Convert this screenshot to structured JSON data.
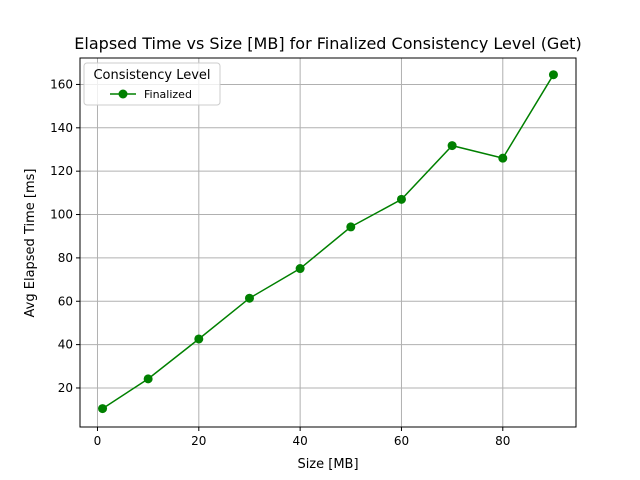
{
  "chart_data": {
    "type": "line",
    "title": "Elapsed Time vs Size [MB] for Finalized Consistency Level (Get)",
    "xlabel": "Size [MB]",
    "ylabel": "Avg Elapsed Time [ms]",
    "xlim": [
      -3.45,
      94.45
    ],
    "ylim": [
      2.0,
      172.2
    ],
    "xticks": [
      0,
      20,
      40,
      60,
      80
    ],
    "yticks": [
      20,
      40,
      60,
      80,
      100,
      120,
      140,
      160
    ],
    "grid": true,
    "legend": {
      "title": "Consistency Level",
      "position": "top-left"
    },
    "series": [
      {
        "name": "Finalized",
        "color": "#008000",
        "marker": "circle",
        "x": [
          1,
          10,
          20,
          30,
          40,
          50,
          60,
          70,
          80,
          90
        ],
        "y": [
          10.5,
          24.2,
          42.6,
          61.4,
          75.1,
          94.3,
          107.0,
          131.8,
          126.0,
          164.5
        ]
      }
    ]
  }
}
